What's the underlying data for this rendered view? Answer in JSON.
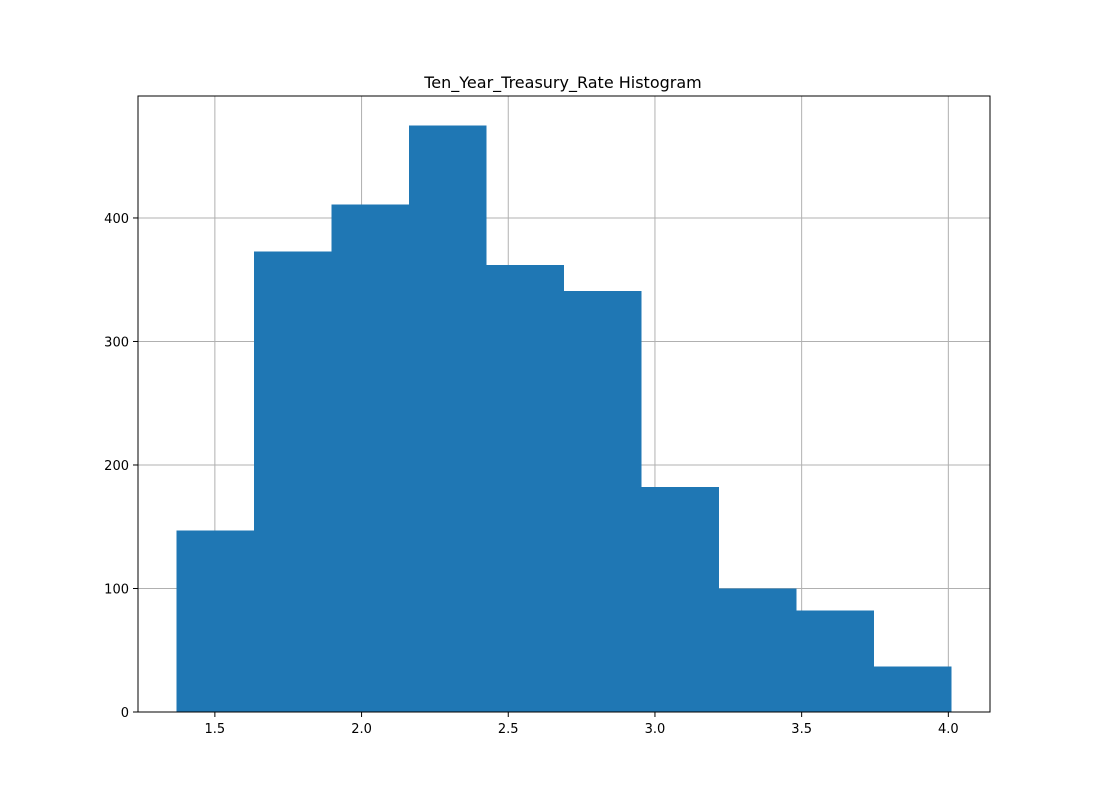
{
  "chart_data": {
    "type": "bar",
    "title": "Ten_Year_Treasury_Rate Histogram",
    "xlabel": "",
    "ylabel": "",
    "bins": [
      {
        "x0": 1.37,
        "x1": 1.634,
        "count": 147
      },
      {
        "x0": 1.634,
        "x1": 1.898,
        "count": 373
      },
      {
        "x0": 1.898,
        "x1": 2.162,
        "count": 411
      },
      {
        "x0": 2.162,
        "x1": 2.426,
        "count": 475
      },
      {
        "x0": 2.426,
        "x1": 2.69,
        "count": 362
      },
      {
        "x0": 2.69,
        "x1": 2.954,
        "count": 341
      },
      {
        "x0": 2.954,
        "x1": 3.218,
        "count": 182
      },
      {
        "x0": 3.218,
        "x1": 3.482,
        "count": 100
      },
      {
        "x0": 3.482,
        "x1": 3.746,
        "count": 82
      },
      {
        "x0": 3.746,
        "x1": 4.01,
        "count": 37
      }
    ],
    "xlim": [
      1.238,
      4.142
    ],
    "ylim": [
      0,
      498.75
    ],
    "xticks": [
      "1.5",
      "2.0",
      "2.5",
      "3.0",
      "3.5",
      "4.0"
    ],
    "yticks": [
      "0",
      "100",
      "200",
      "300",
      "400"
    ],
    "grid": true,
    "bar_color": "#1f77b4",
    "grid_color": "#b0b0b0"
  }
}
